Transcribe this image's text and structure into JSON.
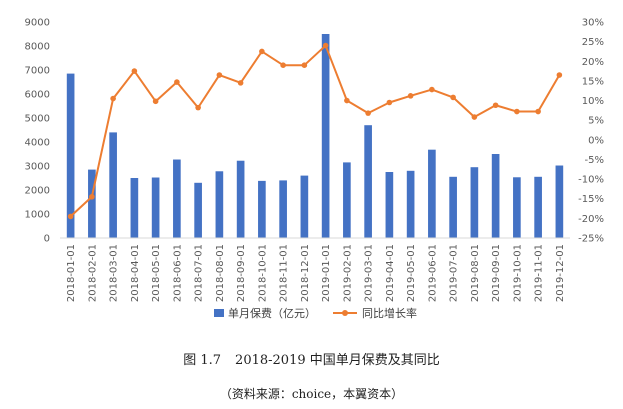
{
  "chart_data": {
    "type": "bar+line",
    "categories": [
      "2018-01-01",
      "2018-02-01",
      "2018-03-01",
      "2018-04-01",
      "2018-05-01",
      "2018-06-01",
      "2018-07-01",
      "2018-08-01",
      "2018-09-01",
      "2018-10-01",
      "2018-11-01",
      "2018-12-01",
      "2019-01-01",
      "2019-02-01",
      "2019-03-01",
      "2019-04-01",
      "2019-05-01",
      "2019-06-01",
      "2019-07-01",
      "2019-08-01",
      "2019-09-01",
      "2019-10-01",
      "2019-11-01",
      "2019-12-01"
    ],
    "series": [
      {
        "name": "单月保费（亿元）",
        "type": "bar",
        "axis": "left",
        "color": "#4472C4",
        "values": [
          6850,
          2850,
          4400,
          2500,
          2520,
          3270,
          2300,
          2780,
          3220,
          2380,
          2400,
          2600,
          8500,
          3150,
          4700,
          2750,
          2800,
          3680,
          2550,
          2950,
          3500,
          2530,
          2550,
          3020
        ]
      },
      {
        "name": "同比增长率",
        "type": "line",
        "axis": "right",
        "color": "#ED7D31",
        "values": [
          -19.5,
          -14.5,
          10.5,
          17.5,
          9.8,
          14.7,
          8.2,
          16.5,
          14.5,
          22.5,
          19,
          19,
          24,
          10,
          6.8,
          9.5,
          11.2,
          12.8,
          10.8,
          5.8,
          8.8,
          7.2,
          7.2,
          16.5
        ]
      }
    ],
    "y_left": {
      "ticks": [
        0,
        1000,
        2000,
        3000,
        4000,
        5000,
        6000,
        7000,
        8000,
        9000
      ],
      "lim": [
        0,
        9000
      ]
    },
    "y_right": {
      "ticks": [
        "-25%",
        "-20%",
        "-15%",
        "-10%",
        "-5%",
        "0%",
        "5%",
        "10%",
        "15%",
        "20%",
        "25%",
        "30%"
      ],
      "lim": [
        -25,
        30
      ]
    },
    "grid": false,
    "legend_position": "bottom"
  },
  "caption": {
    "label": "图 1.7",
    "title": "2018-2019 中国单月保费及其同比"
  },
  "source": "（资料来源：choice，本翼资本）"
}
